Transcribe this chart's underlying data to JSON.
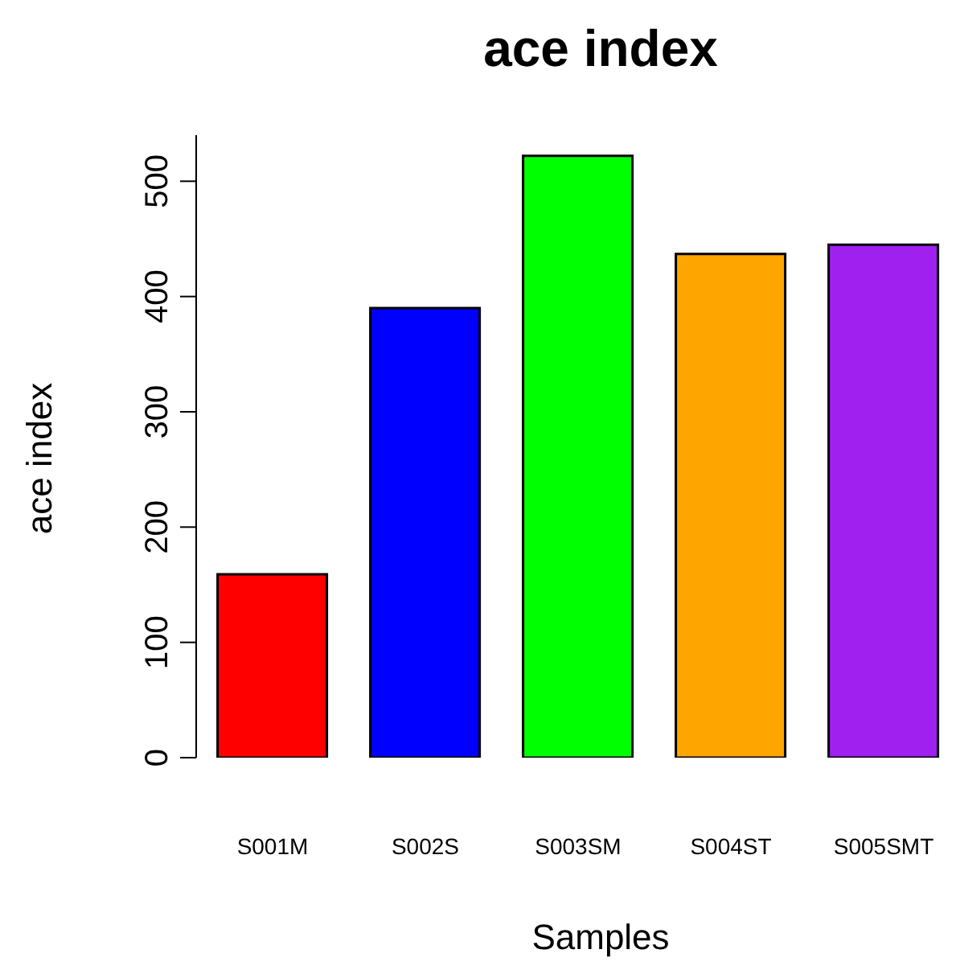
{
  "chart_data": {
    "type": "bar",
    "title": "ace index",
    "xlabel": "Samples",
    "ylabel": "ace index",
    "categories": [
      "S001M",
      "S002S",
      "S003SM",
      "S004ST",
      "S005SMT"
    ],
    "values": [
      159,
      390,
      522,
      437,
      445
    ],
    "colors": [
      "#ff0000",
      "#0000ff",
      "#00ff00",
      "#ffa500",
      "#a020f0"
    ],
    "ylim": [
      0,
      540
    ],
    "yticks": [
      0,
      100,
      200,
      300,
      400,
      500
    ],
    "grid": false,
    "legend": false
  }
}
